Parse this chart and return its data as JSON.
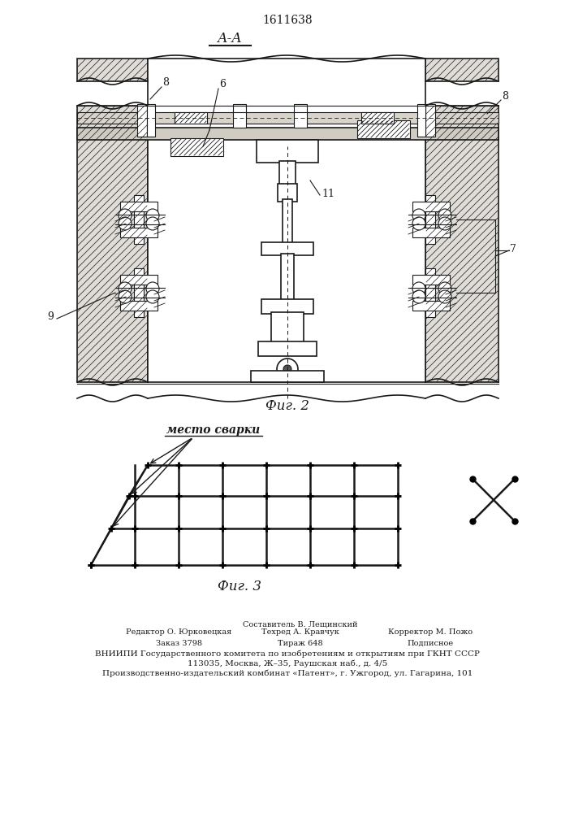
{
  "title": "1611638",
  "fig2_label": "А-А",
  "fig2_caption": "Фиг. 2",
  "fig3_caption": "Фиг. 3",
  "fig3_annotation": "место сварки",
  "line_color": "#1a1a1a",
  "footer_col1_line1": "Редактор О. Юрковецкая",
  "footer_col1_line2": "Заказ 3798",
  "footer_col2_line1": "Составитель В. Лещинский",
  "footer_col2_line2": "Техред А. Кравчук",
  "footer_col2_line3": "Тираж 648",
  "footer_col3_line1": "Корректор М. Пожо",
  "footer_col3_line2": "Подписное",
  "footer_main1": "ВНИИПИ Государственного комитета по изобретениям и открытиям при ГКНТ СССР",
  "footer_main2": "113035, Москва, Ж–35, Раушская наб., д. 4/5",
  "footer_main3": "Производственно-издательский комбинат «Патент», г. Ужгород, ул. Гагарина, 101"
}
